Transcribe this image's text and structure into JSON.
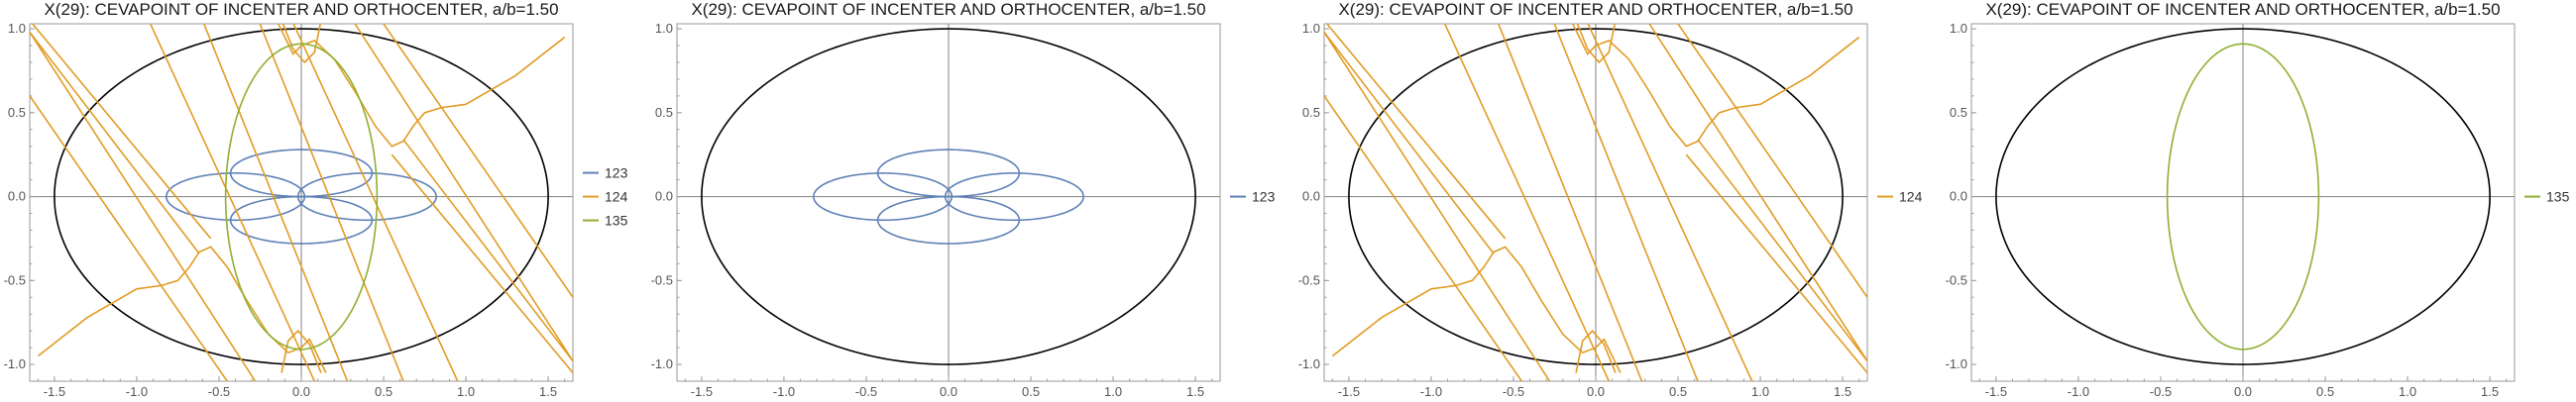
{
  "colors": {
    "123": "#5E81B5",
    "124": "#E19C24",
    "135": "#8FB032",
    "ellipse": "#000000"
  },
  "chart_data": [
    {
      "type": "line",
      "title": "X(29): CEVAPOINT OF INCENTER AND ORTHOCENTER, a/b=1.50",
      "xlim": [
        -1.65,
        1.65
      ],
      "ylim": [
        -1.1,
        1.03
      ],
      "xticks": [
        "-1.5",
        "-1.0",
        "-0.5",
        "0.0",
        "0.5",
        "1.0",
        "1.5"
      ],
      "yticks": [
        "-1.0",
        "-0.5",
        "0.0",
        "0.5",
        "1.0"
      ],
      "legend": [
        "123",
        "124",
        "135"
      ],
      "series": [
        {
          "name": "123",
          "shape": "four-lobed flower",
          "lobes": [
            [
              0,
              0.14,
              0.43,
              0.14
            ],
            [
              0,
              -0.14,
              0.43,
              0.14
            ],
            [
              -0.43,
              0,
              0.43,
              0.14
            ],
            [
              0.43,
              0,
              0.43,
              0.14
            ]
          ]
        },
        {
          "name": "124",
          "shape": "tangent-line envelope",
          "knee_points": [
            [
              0.6,
              0.3
            ],
            [
              -0.6,
              -0.3
            ]
          ],
          "loop_peaks": [
            [
              0.8,
              0.52
            ],
            [
              -0.8,
              -0.52
            ]
          ]
        },
        {
          "name": "135",
          "shape": "ellipse",
          "center": [
            0,
            0
          ],
          "rx": 0.46,
          "ry": 0.91
        }
      ],
      "boundary_ellipse": {
        "a": 1.5,
        "b": 1.0
      }
    },
    {
      "type": "line",
      "title": "X(29): CEVAPOINT OF INCENTER AND ORTHOCENTER, a/b=1.50",
      "xlim": [
        -1.65,
        1.65
      ],
      "ylim": [
        -1.1,
        1.03
      ],
      "xticks": [
        "-1.5",
        "-1.0",
        "-0.5",
        "0.0",
        "0.5",
        "1.0",
        "1.5"
      ],
      "yticks": [
        "-1.0",
        "-0.5",
        "0.0",
        "0.5",
        "1.0"
      ],
      "legend": [
        "123"
      ],
      "series": [
        {
          "name": "123",
          "shape": "four-lobed flower"
        }
      ],
      "boundary_ellipse": {
        "a": 1.5,
        "b": 1.0
      }
    },
    {
      "type": "line",
      "title": "X(29): CEVAPOINT OF INCENTER AND ORTHOCENTER, a/b=1.50",
      "xlim": [
        -1.65,
        1.65
      ],
      "ylim": [
        -1.1,
        1.03
      ],
      "xticks": [
        "-1.5",
        "-1.0",
        "-0.5",
        "0.0",
        "0.5",
        "1.0",
        "1.5"
      ],
      "yticks": [
        "-1.0",
        "-0.5",
        "0.0",
        "0.5",
        "1.0"
      ],
      "legend": [
        "124"
      ],
      "series": [
        {
          "name": "124",
          "shape": "tangent-line envelope"
        }
      ],
      "boundary_ellipse": {
        "a": 1.5,
        "b": 1.0
      }
    },
    {
      "type": "line",
      "title": "X(29): CEVAPOINT OF INCENTER AND ORTHOCENTER, a/b=1.50",
      "xlim": [
        -1.65,
        1.65
      ],
      "ylim": [
        -1.1,
        1.03
      ],
      "xticks": [
        "-1.5",
        "-1.0",
        "-0.5",
        "0.0",
        "0.5",
        "1.0",
        "1.5"
      ],
      "yticks": [
        "-1.0",
        "-0.5",
        "0.0",
        "0.5",
        "1.0"
      ],
      "legend": [
        "135"
      ],
      "series": [
        {
          "name": "135",
          "shape": "ellipse"
        }
      ],
      "boundary_ellipse": {
        "a": 1.5,
        "b": 1.0
      }
    }
  ]
}
